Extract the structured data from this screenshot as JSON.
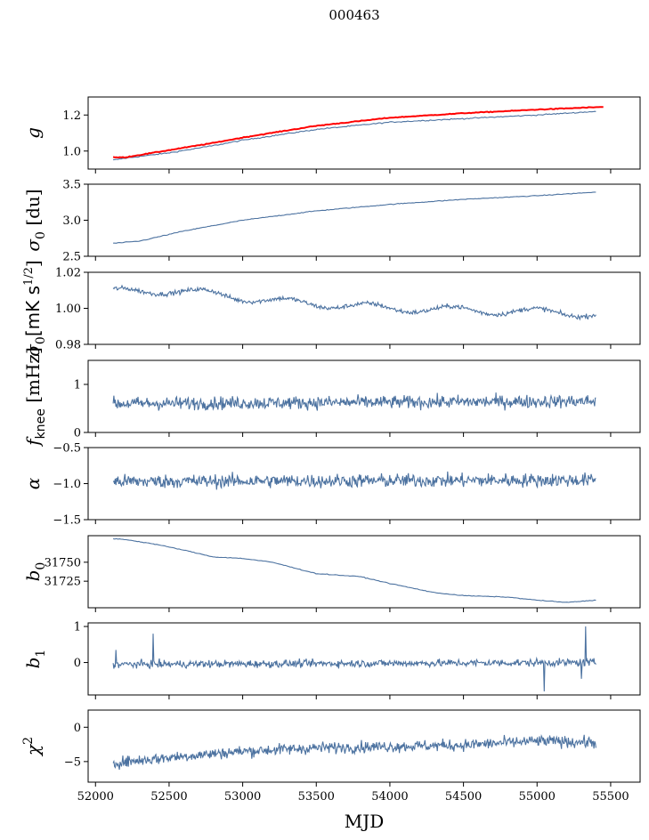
{
  "figure": {
    "title": "000463"
  },
  "colors": {
    "series": "#4c72a0",
    "reference": "#ff0000",
    "axis": "#000000"
  },
  "chart_data": [
    {
      "type": "line",
      "ylabel": "g",
      "ylabel_kind": "g",
      "ylim": [
        0.9,
        1.3
      ],
      "yticks": [
        1.0,
        1.2
      ],
      "ytick_labels": [
        "1.0",
        "1.2"
      ],
      "series": [
        {
          "color": "#4c72a0",
          "kind": "smooth",
          "x": [
            52120,
            52200,
            52500,
            52800,
            53000,
            53500,
            54000,
            54500,
            55000,
            55400
          ],
          "y": [
            0.95,
            0.96,
            0.99,
            1.03,
            1.06,
            1.12,
            1.16,
            1.18,
            1.2,
            1.22
          ],
          "noise": 0.003
        },
        {
          "color": "#ff0000",
          "kind": "smooth",
          "width": 2,
          "x": [
            52120,
            52200,
            52500,
            52800,
            53000,
            53500,
            54000,
            54500,
            55000,
            55450
          ],
          "y": [
            0.965,
            0.965,
            1.005,
            1.045,
            1.075,
            1.14,
            1.185,
            1.21,
            1.23,
            1.245
          ],
          "noise": 0.002
        }
      ]
    },
    {
      "type": "line",
      "ylabel": "σ0 [du]",
      "ylabel_kind": "sigma0_du",
      "ylim": [
        2.5,
        3.5
      ],
      "yticks": [
        2.5,
        3.0,
        3.5
      ],
      "ytick_labels": [
        "2.5",
        "3.0",
        "3.5"
      ],
      "series": [
        {
          "color": "#4c72a0",
          "kind": "smooth",
          "x": [
            52120,
            52300,
            52600,
            53000,
            53500,
            54000,
            54500,
            55000,
            55400
          ],
          "y": [
            2.68,
            2.71,
            2.85,
            3.0,
            3.13,
            3.22,
            3.29,
            3.34,
            3.39
          ],
          "noise": 0.005
        }
      ]
    },
    {
      "type": "line",
      "ylabel": "σ0 [mK s^1/2]",
      "ylabel_kind": "sigma0_mk",
      "ylim": [
        0.98,
        1.02
      ],
      "yticks": [
        0.98,
        1.0,
        1.02
      ],
      "ytick_labels": [
        "0.98",
        "1.00",
        "1.02"
      ],
      "series": [
        {
          "color": "#4c72a0",
          "kind": "noisy",
          "x": [
            52120,
            52500,
            52800,
            53200,
            53600,
            54000,
            54500,
            55000,
            55400
          ],
          "y": [
            1.009,
            1.01,
            1.008,
            1.004,
            1.002,
            1.0,
            0.999,
            0.998,
            0.997
          ],
          "noise": 0.0012,
          "wave": 0.002,
          "count": 600
        }
      ]
    },
    {
      "type": "line",
      "ylabel": "f_knee [mHz]",
      "ylabel_kind": "fknee",
      "ylim": [
        0,
        1.5
      ],
      "yticks": [
        0,
        1
      ],
      "ytick_labels": [
        "0",
        "1"
      ],
      "series": [
        {
          "color": "#4c72a0",
          "kind": "noisy",
          "x": [
            52120,
            55400
          ],
          "y": [
            0.6,
            0.65
          ],
          "noise": 0.13,
          "wave": 0,
          "count": 700
        }
      ]
    },
    {
      "type": "line",
      "ylabel": "α",
      "ylabel_kind": "alpha",
      "ylim": [
        -1.5,
        -0.5
      ],
      "yticks": [
        -1.5,
        -1.0,
        -0.5
      ],
      "ytick_labels": [
        "−1.5",
        "−1.0",
        "−0.5"
      ],
      "series": [
        {
          "color": "#4c72a0",
          "kind": "noisy",
          "x": [
            52120,
            55400
          ],
          "y": [
            -0.97,
            -0.95
          ],
          "noise": 0.09,
          "wave": 0,
          "count": 700
        }
      ]
    },
    {
      "type": "line",
      "ylabel": "b0",
      "ylabel_kind": "b0",
      "ylim": [
        31690,
        31785
      ],
      "yticks": [
        31725,
        31750
      ],
      "ytick_labels": [
        "31725",
        "31750"
      ],
      "series": [
        {
          "color": "#4c72a0",
          "kind": "smooth",
          "x": [
            52120,
            52200,
            52400,
            52600,
            52800,
            53000,
            53200,
            53500,
            53800,
            54000,
            54300,
            54500,
            54800,
            55000,
            55200,
            55400
          ],
          "y": [
            31781,
            31780,
            31774,
            31766,
            31757,
            31755,
            31750,
            31735,
            31731,
            31722,
            31710,
            31706,
            31704,
            31700,
            31697,
            31700
          ],
          "noise": 0.4
        }
      ]
    },
    {
      "type": "line",
      "ylabel": "b1",
      "ylabel_kind": "b1",
      "ylim": [
        -0.9,
        1.1
      ],
      "yticks": [
        0,
        1
      ],
      "ytick_labels": [
        "0",
        "1"
      ],
      "series": [
        {
          "color": "#4c72a0",
          "kind": "noisy",
          "x": [
            52120,
            55400
          ],
          "y": [
            -0.05,
            0.0
          ],
          "noise": 0.1,
          "wave": 0,
          "count": 700,
          "spikes": [
            [
              52140,
              0.35
            ],
            [
              52390,
              0.8
            ],
            [
              55050,
              -0.8
            ],
            [
              55330,
              1.0
            ],
            [
              55300,
              -0.45
            ]
          ]
        }
      ]
    },
    {
      "type": "line",
      "ylabel": "χ²",
      "ylabel_kind": "chi2",
      "xlabel": "MJD",
      "xlim": [
        51950,
        55700
      ],
      "ylim": [
        -8,
        2.5
      ],
      "yticks": [
        -5,
        0
      ],
      "ytick_labels": [
        "−5",
        "0"
      ],
      "xticks": [
        52000,
        52500,
        53000,
        53500,
        54000,
        54500,
        55000,
        55500
      ],
      "xtick_labels": [
        "52000",
        "52500",
        "53000",
        "53500",
        "54000",
        "54500",
        "55000",
        "55500"
      ],
      "series": [
        {
          "color": "#4c72a0",
          "kind": "noisy",
          "x": [
            52120,
            52500,
            53000,
            53500,
            54000,
            54500,
            55000,
            55400
          ],
          "y": [
            -5.2,
            -4.4,
            -3.5,
            -3.0,
            -2.8,
            -2.6,
            -2.0,
            -2.2
          ],
          "noise": 0.8,
          "wave": 0,
          "count": 700
        }
      ]
    }
  ]
}
